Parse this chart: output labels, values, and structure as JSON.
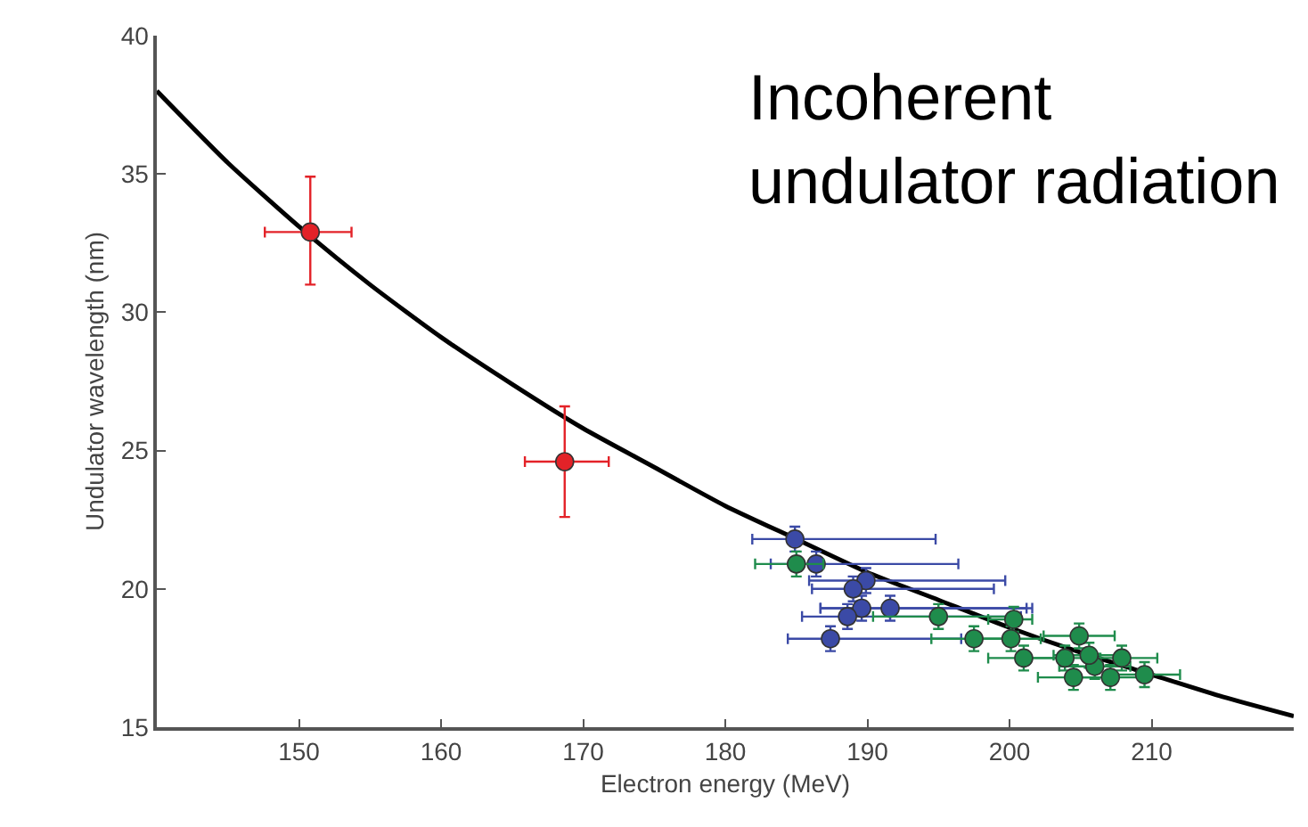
{
  "chart_data": {
    "type": "scatter",
    "xlabel": "Electron energy (MeV)",
    "ylabel": "Undulator wavelength (nm)",
    "xlim": [
      140,
      220
    ],
    "ylim": [
      15,
      40
    ],
    "xticks": [
      150,
      160,
      170,
      180,
      190,
      200,
      210
    ],
    "yticks": [
      15,
      20,
      25,
      30,
      35,
      40
    ],
    "marker": "circle",
    "annotations": [
      "Incoherent\nundulator radiation"
    ],
    "series": [
      {
        "type": "line",
        "color": "#000000",
        "marker": "none",
        "x": [
          140,
          145,
          150,
          155,
          160,
          165,
          170,
          175,
          180,
          185,
          190,
          195,
          200,
          205,
          210,
          215,
          220
        ],
        "values": [
          38.0,
          35.4,
          33.1,
          31.0,
          29.1,
          27.4,
          25.8,
          24.4,
          23.0,
          21.8,
          20.6,
          19.6,
          18.6,
          17.7,
          16.9,
          16.1,
          15.4
        ]
      },
      {
        "color": "#e32228",
        "x": [
          150.8,
          168.7
        ],
        "values": [
          32.9,
          24.6
        ],
        "errors": [
          [
            31.0,
            34.9
          ],
          [
            22.6,
            26.6
          ]
        ],
        "xerrors": [
          [
            147.6,
            153.7
          ],
          [
            165.9,
            171.8
          ]
        ]
      },
      {
        "color": "#3b4aa6",
        "x": [
          184.9,
          186.4,
          189.9,
          189.0,
          189.6,
          191.6,
          188.6,
          187.4
        ],
        "values": [
          21.8,
          20.9,
          20.3,
          20.0,
          19.3,
          19.3,
          19.0,
          18.2
        ],
        "errors": [
          0.45,
          0.45,
          0.45,
          0.45,
          0.45,
          0.45,
          0.45,
          0.45
        ],
        "xerrors": [
          [
            181.9,
            194.8
          ],
          [
            183.2,
            196.4
          ],
          [
            185.9,
            199.7
          ],
          [
            186.1,
            198.9
          ],
          [
            186.7,
            201.6
          ],
          [
            186.7,
            201.2
          ],
          [
            185.4,
            200.8
          ],
          [
            184.4,
            196.6
          ]
        ]
      },
      {
        "color": "#1f8c4c",
        "x": [
          185.0,
          195.0,
          197.5,
          200.3,
          200.1,
          201.0,
          204.9,
          203.9,
          204.5,
          206.0,
          207.1,
          207.9,
          209.5,
          205.6
        ],
        "values": [
          20.9,
          19.0,
          18.2,
          18.9,
          18.2,
          17.5,
          18.3,
          17.5,
          16.8,
          17.2,
          16.8,
          17.5,
          16.9,
          17.6
        ],
        "errors": [
          0.45,
          0.45,
          0.45,
          0.45,
          0.45,
          0.45,
          0.45,
          0.45,
          0.45,
          0.45,
          0.45,
          0.45,
          0.45,
          0.45
        ],
        "xerrors": [
          [
            182.1,
            186.9
          ],
          [
            190.4,
            200.3
          ],
          [
            194.5,
            199.9
          ],
          [
            198.5,
            201.6
          ],
          [
            197.7,
            202.2
          ],
          [
            198.5,
            203.5
          ],
          [
            202.4,
            207.4
          ],
          [
            201.4,
            206.4
          ],
          [
            202.0,
            207.0
          ],
          [
            203.5,
            208.5
          ],
          [
            204.6,
            209.6
          ],
          [
            205.4,
            210.4
          ],
          [
            207.0,
            212.0
          ],
          [
            203.1,
            208.1
          ]
        ]
      }
    ]
  }
}
